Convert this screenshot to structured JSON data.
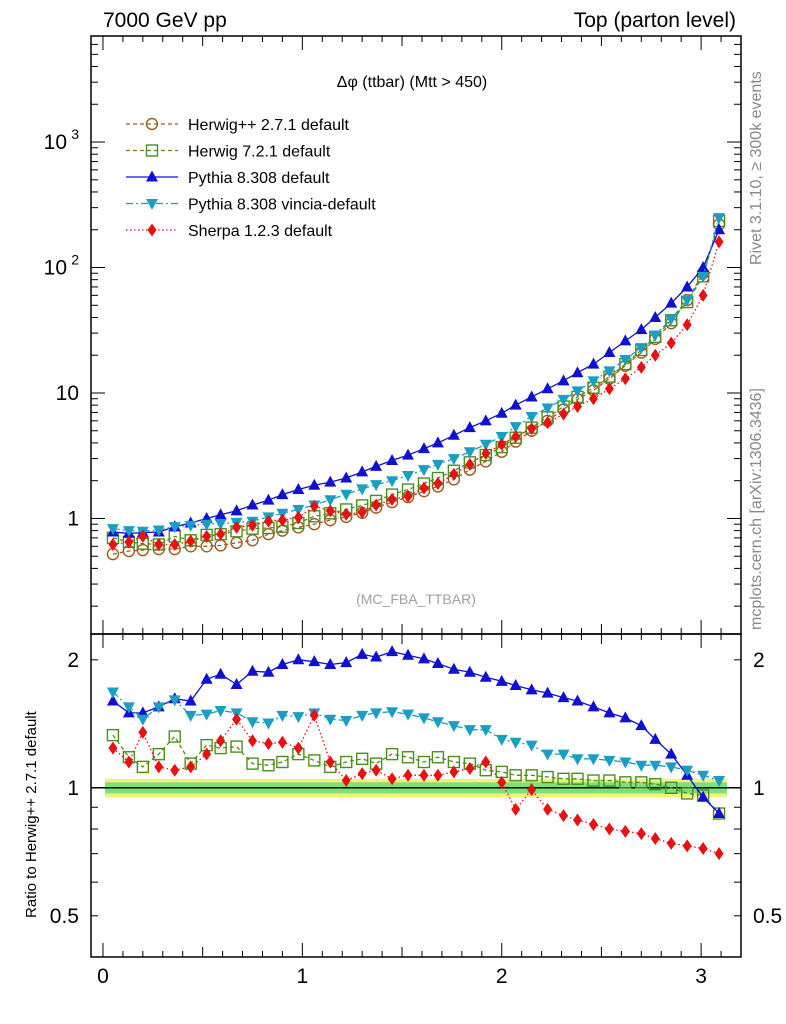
{
  "header": {
    "left": "7000 GeV pp",
    "right": "Top (parton level)"
  },
  "plot_title": "Δφ (ttbar) (Mtt > 450)",
  "watermark": "(MC_FBA_TTBAR)",
  "side_label_top": "Rivet 3.1.10, ≥ 300k events",
  "side_label_bottom": "mcplots.cern.ch [arXiv:1306.3436]",
  "ratio_ylabel": "Ratio to Herwig++ 2.7.1 default",
  "colors": {
    "herwigpp": "#a05a1e",
    "herwig7": "#4c8f1e",
    "pythia": "#1010d0",
    "vincia": "#1a9ec4",
    "sherpa": "#e81010",
    "band_inner": "#7de07d",
    "band_outer": "#f2f27a"
  },
  "chart_data": [
    {
      "type": "line",
      "panel": "main",
      "yscale": "log",
      "ylim": [
        0.12,
        7000
      ],
      "xlim": [
        -0.06,
        3.2
      ],
      "yticks": [
        {
          "value": 1,
          "label": "1"
        },
        {
          "value": 10,
          "label": "10"
        },
        {
          "value": 100,
          "label": "10",
          "sup": "2"
        },
        {
          "value": 1000,
          "label": "10",
          "sup": "3"
        }
      ],
      "legend_position": "top-left",
      "x": [
        0.05,
        0.13,
        0.2,
        0.28,
        0.36,
        0.44,
        0.52,
        0.59,
        0.67,
        0.75,
        0.83,
        0.9,
        0.98,
        1.06,
        1.14,
        1.22,
        1.3,
        1.37,
        1.45,
        1.53,
        1.61,
        1.68,
        1.76,
        1.84,
        1.92,
        2.0,
        2.07,
        2.15,
        2.23,
        2.31,
        2.38,
        2.46,
        2.54,
        2.62,
        2.7,
        2.77,
        2.85,
        2.93,
        3.01,
        3.09
      ],
      "series": [
        {
          "name": "Herwig++ 2.7.1 default",
          "key": "herwigpp",
          "marker": "circle",
          "line": "dashed",
          "values": [
            0.52,
            0.55,
            0.56,
            0.57,
            0.57,
            0.6,
            0.6,
            0.61,
            0.64,
            0.67,
            0.75,
            0.8,
            0.85,
            0.9,
            0.97,
            1.03,
            1.11,
            1.22,
            1.35,
            1.48,
            1.65,
            1.8,
            2.05,
            2.45,
            2.85,
            3.4,
            4.1,
            5.0,
            6.0,
            7.4,
            8.9,
            10.5,
            13.0,
            16.5,
            21.0,
            27.0,
            36.0,
            55.0,
            90.0,
            220.0
          ]
        },
        {
          "name": "Herwig 7.2.1 default",
          "key": "herwig7",
          "marker": "square",
          "line": "dashed",
          "values": [
            0.7,
            0.65,
            0.63,
            0.62,
            0.72,
            0.67,
            0.74,
            0.75,
            0.79,
            0.83,
            0.84,
            0.86,
            0.92,
            1.04,
            1.1,
            1.18,
            1.27,
            1.38,
            1.55,
            1.7,
            1.9,
            2.1,
            2.4,
            2.8,
            3.2,
            3.7,
            4.4,
            5.3,
            6.4,
            7.8,
            9.3,
            11.0,
            13.5,
            17.0,
            22.0,
            28.0,
            38.0,
            53.0,
            85.0,
            235.0
          ]
        },
        {
          "name": "Pythia 8.308 default",
          "key": "pythia",
          "marker": "triangle-up",
          "line": "solid",
          "values": [
            0.78,
            0.76,
            0.77,
            0.78,
            0.86,
            0.92,
            1.0,
            1.07,
            1.15,
            1.28,
            1.4,
            1.55,
            1.7,
            1.84,
            1.95,
            2.1,
            2.35,
            2.6,
            2.9,
            3.2,
            3.6,
            4.0,
            4.6,
            5.3,
            6.0,
            6.9,
            8.0,
            9.3,
            10.8,
            12.5,
            14.5,
            17.0,
            21.0,
            26.0,
            32.0,
            40.0,
            52.0,
            70.0,
            100.0,
            200.0
          ]
        },
        {
          "name": "Pythia 8.308 vincia-default",
          "key": "vincia",
          "marker": "triangle-down",
          "line": "dashdot",
          "values": [
            0.83,
            0.8,
            0.79,
            0.81,
            0.86,
            0.88,
            0.9,
            0.91,
            0.93,
            0.95,
            1.03,
            1.1,
            1.18,
            1.28,
            1.41,
            1.56,
            1.72,
            1.86,
            2.0,
            2.2,
            2.45,
            2.7,
            3.0,
            3.4,
            3.9,
            4.5,
            5.4,
            6.5,
            7.6,
            8.9,
            10.4,
            12.5,
            15.0,
            18.5,
            23.0,
            29.0,
            39.0,
            55.0,
            85.0,
            250.0
          ]
        },
        {
          "name": "Sherpa 1.2.3 default",
          "key": "sherpa",
          "marker": "diamond",
          "line": "dotted",
          "values": [
            0.62,
            0.65,
            0.72,
            0.62,
            0.62,
            0.66,
            0.72,
            0.75,
            0.85,
            0.88,
            0.95,
            0.97,
            1.02,
            1.25,
            1.15,
            1.08,
            1.12,
            1.28,
            1.42,
            1.5,
            1.75,
            1.9,
            2.25,
            2.7,
            3.3,
            3.9,
            4.5,
            5.2,
            5.8,
            6.8,
            7.8,
            9.0,
            10.8,
            13.0,
            16.0,
            20.0,
            25.0,
            35.0,
            60.0,
            160.0
          ]
        }
      ]
    },
    {
      "type": "line",
      "panel": "ratio",
      "yscale": "log",
      "ylim": [
        0.4,
        2.3
      ],
      "xlim": [
        -0.06,
        3.2
      ],
      "xticks": [
        0,
        1,
        2,
        3
      ],
      "yticks": [
        {
          "value": 0.5,
          "label": "0.5"
        },
        {
          "value": 1,
          "label": "1"
        },
        {
          "value": 2,
          "label": "2"
        }
      ],
      "x": [
        0.05,
        0.13,
        0.2,
        0.28,
        0.36,
        0.44,
        0.52,
        0.59,
        0.67,
        0.75,
        0.83,
        0.9,
        0.98,
        1.06,
        1.14,
        1.22,
        1.3,
        1.37,
        1.45,
        1.53,
        1.61,
        1.68,
        1.76,
        1.84,
        1.92,
        2.0,
        2.07,
        2.15,
        2.23,
        2.31,
        2.38,
        2.46,
        2.54,
        2.62,
        2.7,
        2.77,
        2.85,
        2.93,
        3.01,
        3.09
      ],
      "band_inner": [
        0.97,
        1.03
      ],
      "band_outer": [
        0.95,
        1.05
      ],
      "series": [
        {
          "name": "Herwig 7.2.1 default",
          "key": "herwig7",
          "marker": "square",
          "line": "dashed",
          "values": [
            1.33,
            1.18,
            1.12,
            1.2,
            1.32,
            1.14,
            1.26,
            1.24,
            1.25,
            1.14,
            1.13,
            1.15,
            1.2,
            1.16,
            1.12,
            1.15,
            1.17,
            1.14,
            1.2,
            1.18,
            1.15,
            1.18,
            1.15,
            1.14,
            1.1,
            1.09,
            1.07,
            1.07,
            1.06,
            1.05,
            1.05,
            1.04,
            1.04,
            1.03,
            1.03,
            1.02,
            1.0,
            0.97,
            0.96,
            0.87
          ]
        },
        {
          "name": "Pythia 8.308 default",
          "key": "pythia",
          "marker": "triangle-up",
          "line": "solid",
          "values": [
            1.6,
            1.5,
            1.5,
            1.55,
            1.62,
            1.6,
            1.8,
            1.85,
            1.75,
            1.88,
            1.87,
            1.95,
            2.0,
            1.98,
            1.95,
            1.97,
            2.06,
            2.03,
            2.09,
            2.05,
            2.01,
            1.96,
            1.9,
            1.87,
            1.82,
            1.78,
            1.74,
            1.7,
            1.67,
            1.63,
            1.6,
            1.55,
            1.5,
            1.46,
            1.4,
            1.3,
            1.2,
            1.07,
            0.95,
            0.87
          ]
        },
        {
          "name": "Pythia 8.308 vincia-default",
          "key": "vincia",
          "marker": "triangle-down",
          "line": "dashdot",
          "values": [
            1.68,
            1.55,
            1.45,
            1.55,
            1.61,
            1.48,
            1.49,
            1.52,
            1.5,
            1.43,
            1.42,
            1.48,
            1.47,
            1.5,
            1.45,
            1.44,
            1.48,
            1.5,
            1.51,
            1.49,
            1.46,
            1.43,
            1.4,
            1.37,
            1.37,
            1.3,
            1.28,
            1.26,
            1.2,
            1.2,
            1.17,
            1.17,
            1.16,
            1.15,
            1.13,
            1.13,
            1.12,
            1.1,
            1.07,
            1.04
          ]
        },
        {
          "name": "Sherpa 1.2.3 default",
          "key": "sherpa",
          "marker": "diamond",
          "line": "dotted",
          "values": [
            1.24,
            1.15,
            1.35,
            1.12,
            1.1,
            1.12,
            1.2,
            1.29,
            1.45,
            1.29,
            1.27,
            1.28,
            1.24,
            1.48,
            1.15,
            1.04,
            1.08,
            1.1,
            1.05,
            1.07,
            1.07,
            1.07,
            1.09,
            1.11,
            1.15,
            1.03,
            0.89,
            0.99,
            0.89,
            0.86,
            0.84,
            0.82,
            0.8,
            0.79,
            0.78,
            0.76,
            0.74,
            0.73,
            0.72,
            0.7
          ]
        }
      ]
    }
  ]
}
